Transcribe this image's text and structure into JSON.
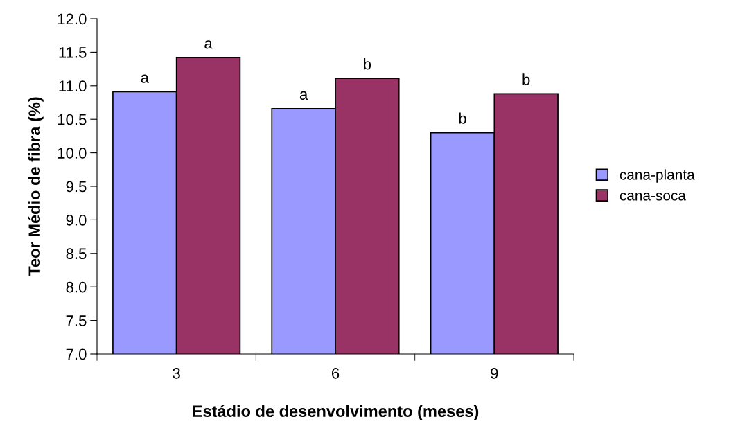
{
  "chart_data": {
    "type": "bar",
    "xlabel": "Estádio de desenvolvimento (meses)",
    "ylabel": "Teor Médio de fibra (%)",
    "categories": [
      "3",
      "6",
      "9"
    ],
    "series": [
      {
        "name": "cana-planta",
        "color": "#9999ff",
        "values": [
          10.91,
          10.66,
          10.3
        ]
      },
      {
        "name": "cana-soca",
        "color": "#993366",
        "values": [
          11.42,
          11.11,
          10.88
        ]
      }
    ],
    "ylim": [
      7.0,
      12.0
    ],
    "yticks": [
      {
        "value": 7.0,
        "label": "7.0"
      },
      {
        "value": 7.5,
        "label": "7.5"
      },
      {
        "value": 8.0,
        "label": "8.0"
      },
      {
        "value": 8.5,
        "label": "8.5"
      },
      {
        "value": 9.0,
        "label": "9.0"
      },
      {
        "value": 9.5,
        "label": "9.5"
      },
      {
        "value": 10.0,
        "label": "10.0"
      },
      {
        "value": 10.5,
        "label": "10.5"
      },
      {
        "value": 11.0,
        "label": "11.0"
      },
      {
        "value": 11.5,
        "label": "11.5"
      },
      {
        "value": 12.0,
        "label": "12.0"
      }
    ],
    "annotations": [
      {
        "text": "a",
        "x": "3",
        "y": 10.91
      },
      {
        "text": "a",
        "x": "3",
        "y": 11.42
      },
      {
        "text": "a",
        "x": "6",
        "y": 10.66
      },
      {
        "text": "b",
        "x": "6",
        "y": 11.11
      },
      {
        "text": "b",
        "x": "9",
        "y": 10.3
      },
      {
        "text": "b",
        "x": "9",
        "y": 10.88
      }
    ],
    "legend": "right",
    "grid": false
  }
}
